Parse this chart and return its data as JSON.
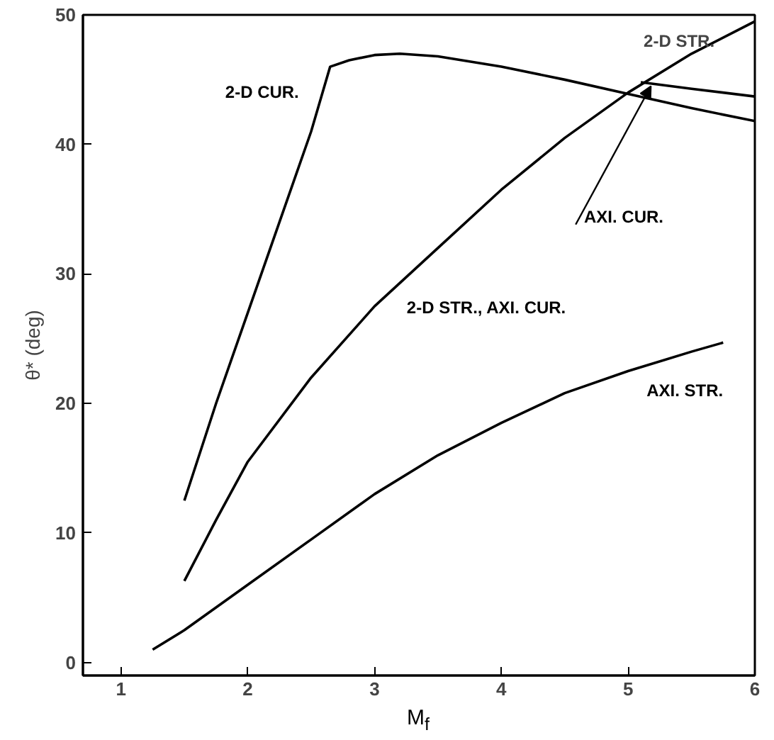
{
  "chart_data": {
    "type": "line",
    "xlabel": "M$_{f}$",
    "ylabel": "θ* (deg)",
    "xlim": [
      0.7,
      6
    ],
    "ylim": [
      -1,
      50
    ],
    "xticks": [
      1,
      2,
      3,
      4,
      5,
      6
    ],
    "yticks": [
      0,
      10,
      20,
      30,
      40,
      50
    ],
    "grid": false,
    "legend": false,
    "marker": "none",
    "line_style": "solid",
    "series": [
      {
        "name": "2-D CUR.",
        "color": "#000000",
        "x": [
          1.5,
          1.75,
          2.0,
          2.25,
          2.5,
          2.65,
          2.8,
          3.0,
          3.2,
          3.5,
          4.0,
          4.5,
          5.0,
          5.5,
          6.0
        ],
        "values": [
          12.5,
          20,
          27,
          34,
          41,
          46,
          46.5,
          46.9,
          47,
          46.8,
          46,
          45,
          43.9,
          42.8,
          41.8
        ]
      },
      {
        "name": "2-D STR., AXI. CUR.",
        "color": "#000000",
        "x": [
          1.5,
          1.75,
          2.0,
          2.5,
          3.0,
          3.5,
          4.0,
          4.5,
          5.0,
          5.5,
          6.0
        ],
        "values": [
          6.3,
          11,
          15.5,
          22,
          27.5,
          32,
          36.5,
          40.5,
          44,
          47,
          49.5
        ]
      },
      {
        "name": "AXI. CUR.",
        "color": "#000000",
        "x": [
          5.1,
          5.5,
          6.0
        ],
        "values": [
          44.8,
          44.3,
          43.7
        ]
      },
      {
        "name": "AXI. STR.",
        "color": "#000000",
        "x": [
          1.25,
          1.5,
          2.0,
          2.5,
          3.0,
          3.5,
          4.0,
          4.5,
          5.0,
          5.5,
          5.75
        ],
        "values": [
          1,
          2.5,
          6,
          9.5,
          13,
          16,
          18.5,
          20.8,
          22.5,
          24,
          24.7
        ]
      }
    ],
    "annotations": [
      "2-D STR."
    ]
  }
}
